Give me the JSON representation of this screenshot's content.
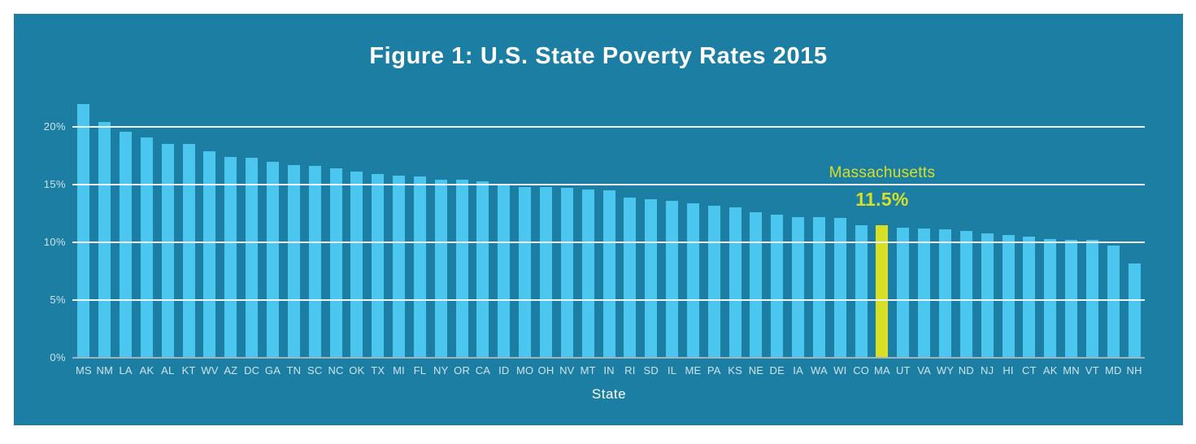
{
  "figure": {
    "title": "Figure 1: U.S. State Poverty Rates 2015"
  },
  "chart_data": {
    "type": "bar",
    "title": "Figure 1: U.S. State Poverty Rates 2015",
    "xlabel": "State",
    "ylabel": "",
    "ylim": [
      0,
      22.5
    ],
    "grid": true,
    "y_tick_values": [
      0,
      5,
      10,
      15,
      20
    ],
    "y_tick_labels": [
      "0%",
      "5%",
      "10%",
      "15%",
      "20%"
    ],
    "categories": [
      "MS",
      "NM",
      "LA",
      "AK",
      "AL",
      "KT",
      "WV",
      "AZ",
      "DC",
      "GA",
      "TN",
      "SC",
      "NC",
      "OK",
      "TX",
      "MI",
      "FL",
      "NY",
      "OR",
      "CA",
      "ID",
      "MO",
      "OH",
      "NV",
      "MT",
      "IN",
      "RI",
      "SD",
      "IL",
      "ME",
      "PA",
      "KS",
      "NE",
      "DE",
      "IA",
      "WA",
      "WI",
      "CO",
      "MA",
      "UT",
      "VA",
      "WY",
      "ND",
      "NJ",
      "HI",
      "CT",
      "AK",
      "MN",
      "VT",
      "MD",
      "NH"
    ],
    "values": [
      22.0,
      20.4,
      19.6,
      19.1,
      18.5,
      18.5,
      17.9,
      17.4,
      17.3,
      17.0,
      16.7,
      16.6,
      16.4,
      16.1,
      15.9,
      15.8,
      15.7,
      15.4,
      15.4,
      15.3,
      15.1,
      14.8,
      14.8,
      14.7,
      14.6,
      14.5,
      13.9,
      13.7,
      13.6,
      13.4,
      13.2,
      13.0,
      12.6,
      12.4,
      12.2,
      12.2,
      12.1,
      11.5,
      11.5,
      11.3,
      11.2,
      11.1,
      11.0,
      10.8,
      10.6,
      10.5,
      10.3,
      10.2,
      10.2,
      9.7,
      8.2
    ],
    "highlight": {
      "index": 38,
      "category": "MA",
      "label": "Massachusetts",
      "value_label": "11.5%"
    },
    "colors": {
      "panel_background": "#1c7ea3",
      "bar": "#4bc6ee",
      "highlight": "#d8df25",
      "gridline": "#eef6f9",
      "baseline": "#9fb4bd",
      "axis_text": "#cde4ee",
      "title_text": "#ffffff"
    }
  }
}
